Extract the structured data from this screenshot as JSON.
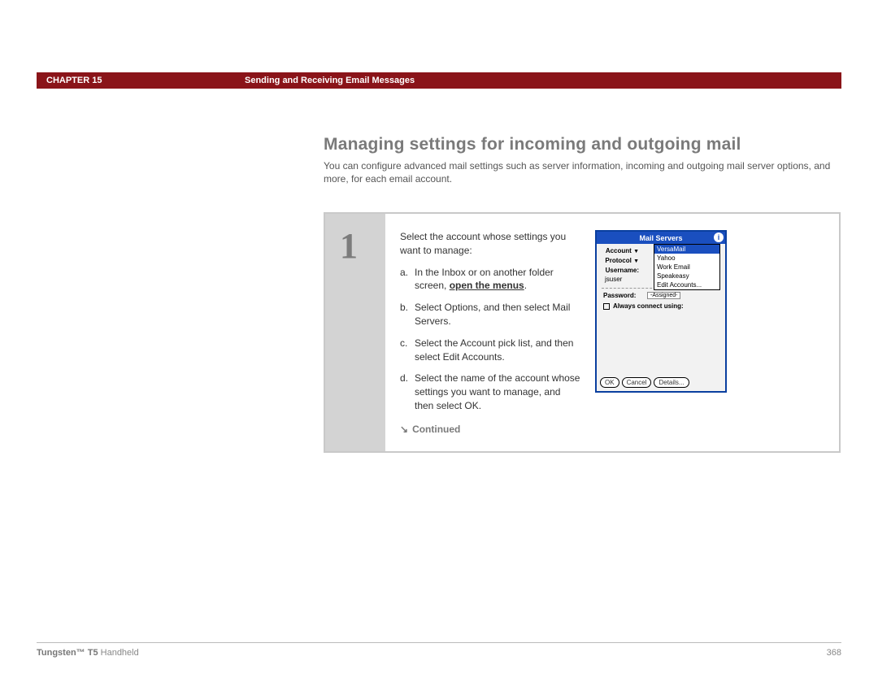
{
  "header": {
    "chapter_label": "CHAPTER 15",
    "chapter_title": "Sending and Receiving Email Messages"
  },
  "section": {
    "heading": "Managing settings for incoming and outgoing mail",
    "intro": "You can configure advanced mail settings such as server information, incoming and outgoing mail server options, and more, for each email account."
  },
  "step": {
    "number": "1",
    "lead": "Select the account whose settings you want to manage:",
    "items": {
      "a": {
        "label": "a.",
        "pre": "In the Inbox or on another folder screen, ",
        "link": "open the menus",
        "post": "."
      },
      "b": {
        "label": "b.",
        "text": "Select Options, and then select Mail Servers."
      },
      "c": {
        "label": "c.",
        "text": "Select the Account pick list, and then select Edit Accounts."
      },
      "d": {
        "label": "d.",
        "text": "Select the name of the account whose settings you want to manage, and then select OK."
      }
    },
    "continued_label": "Continued"
  },
  "device": {
    "title": "Mail Servers",
    "info_glyph": "i",
    "labels": {
      "account": "Account",
      "protocol": "Protocol",
      "username": "Username:",
      "password": "Password:",
      "always_connect": "Always connect using:"
    },
    "username_value": "jsuser",
    "password_value": "-Assigned-",
    "dropdown_glyph": "▼",
    "menu": [
      "VersaMail",
      "Yahoo",
      "Work Email",
      "Speakeasy",
      "Edit Accounts..."
    ],
    "buttons": {
      "ok": "OK",
      "cancel": "Cancel",
      "details": "Details..."
    }
  },
  "footer": {
    "product_bold": "Tungsten™ T5",
    "product_rest": " Handheld",
    "page": "368"
  }
}
